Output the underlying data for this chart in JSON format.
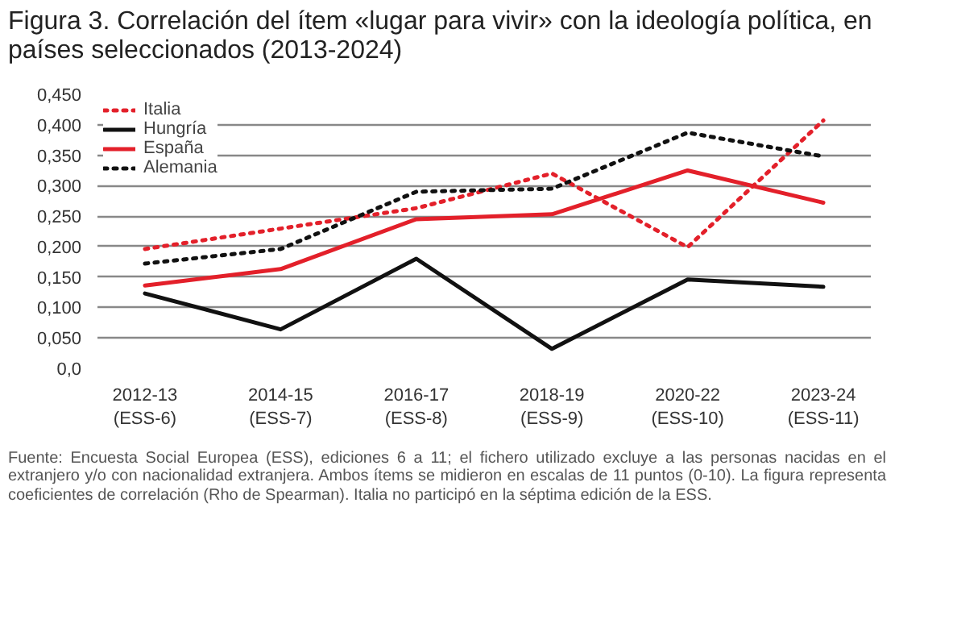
{
  "chart_data": {
    "type": "line",
    "title": "Figura 3. Correlación del ítem «lugar para vivir» con la ideología política, en países seleccionados (2013-2024)",
    "categories": [
      "2012-13\n(ESS-6)",
      "2014-15\n(ESS-7)",
      "2016-17\n(ESS-8)",
      "2018-19\n(ESS-9)",
      "2020-22\n(ESS-10)",
      "2023-24\n(ESS-11)"
    ],
    "series": [
      {
        "name": "Italia",
        "color": "#e3202a",
        "line_style": "dotted",
        "values": [
          0.196,
          null,
          0.263,
          0.32,
          0.199,
          0.407
        ]
      },
      {
        "name": "Hungría",
        "color": "#111111",
        "line_style": "solid",
        "values": [
          0.123,
          0.064,
          0.18,
          0.032,
          0.146,
          0.134
        ]
      },
      {
        "name": "España",
        "color": "#e3202a",
        "line_style": "solid",
        "values": [
          0.136,
          0.163,
          0.245,
          0.253,
          0.325,
          0.272
        ]
      },
      {
        "name": "Alemania",
        "color": "#111111",
        "line_style": "dotted",
        "values": [
          0.172,
          0.196,
          0.29,
          0.295,
          0.387,
          0.348
        ]
      }
    ],
    "ylim": [
      0,
      0.45
    ],
    "yticks": [
      {
        "value": 0,
        "label": "0,0"
      },
      {
        "value": 0.05,
        "label": "0,050"
      },
      {
        "value": 0.1,
        "label": "0,100"
      },
      {
        "value": 0.15,
        "label": "0,150"
      },
      {
        "value": 0.2,
        "label": "0,200"
      },
      {
        "value": 0.25,
        "label": "0,250"
      },
      {
        "value": 0.3,
        "label": "0,300"
      },
      {
        "value": 0.35,
        "label": "0,350"
      },
      {
        "value": 0.4,
        "label": "0,400"
      },
      {
        "value": 0.45,
        "label": "0,450"
      }
    ],
    "grid": "y",
    "legend": "top left",
    "annotations": [
      "Fuente: Encuesta Social Europea (ESS), ediciones 6 a 11; el fichero utilizado excluye a las personas nacidas en el extranjero y/o con nacionalidad extranjera. Ambos ítems se midieron en escalas de 11 puntos (0-10). La figura representa coeficientes de correlación (Rho de Spearman). Italia no participó en la séptima edición de la ESS."
    ]
  }
}
